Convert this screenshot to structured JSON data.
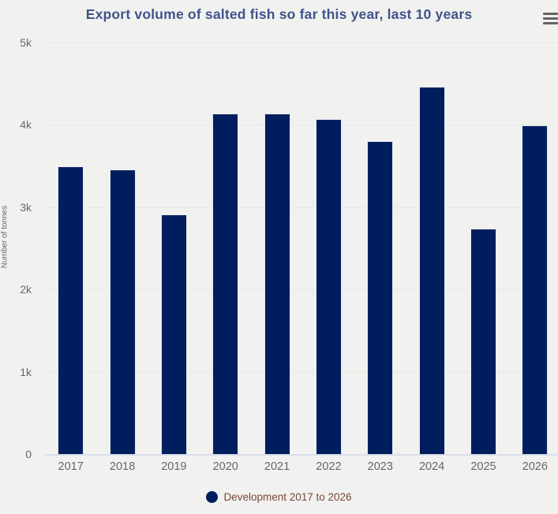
{
  "title": "Export volume of salted fish so far this year, last 10 years",
  "icons": {
    "context_menu": "hamburger-menu-icon",
    "legend_marker": "legend-dot-icon"
  },
  "colors": {
    "background": "#f1f2f0",
    "bar": "#001e5e",
    "bar_border": "#e6e8f2",
    "title": "#41538a",
    "axis_label": "#666666",
    "legend_text": "#7a4639",
    "gridline": "#e7e8e4",
    "axis_line": "#d9deeb"
  },
  "y_axis": {
    "title": "Number of tonnes",
    "ticks": [
      "5k",
      "4k",
      "3k",
      "2k",
      "1k",
      "0"
    ]
  },
  "legend": {
    "label": "Development 2017 to 2026"
  },
  "chart_data": {
    "type": "bar",
    "title": "Export volume of salted fish so far this year, last 10 years",
    "categories": [
      "2017",
      "2018",
      "2019",
      "2020",
      "2021",
      "2022",
      "2023",
      "2024",
      "2025",
      "2026"
    ],
    "values": [
      3500,
      3455,
      2915,
      4135,
      4135,
      4075,
      3805,
      4465,
      2740,
      3995
    ],
    "series_name": "Development 2017 to 2026",
    "xlabel": "",
    "ylabel": "Number of tonnes",
    "ylim": [
      0,
      5000
    ],
    "ytick_interval": 1000,
    "grid": true,
    "legend_position": "bottom"
  }
}
